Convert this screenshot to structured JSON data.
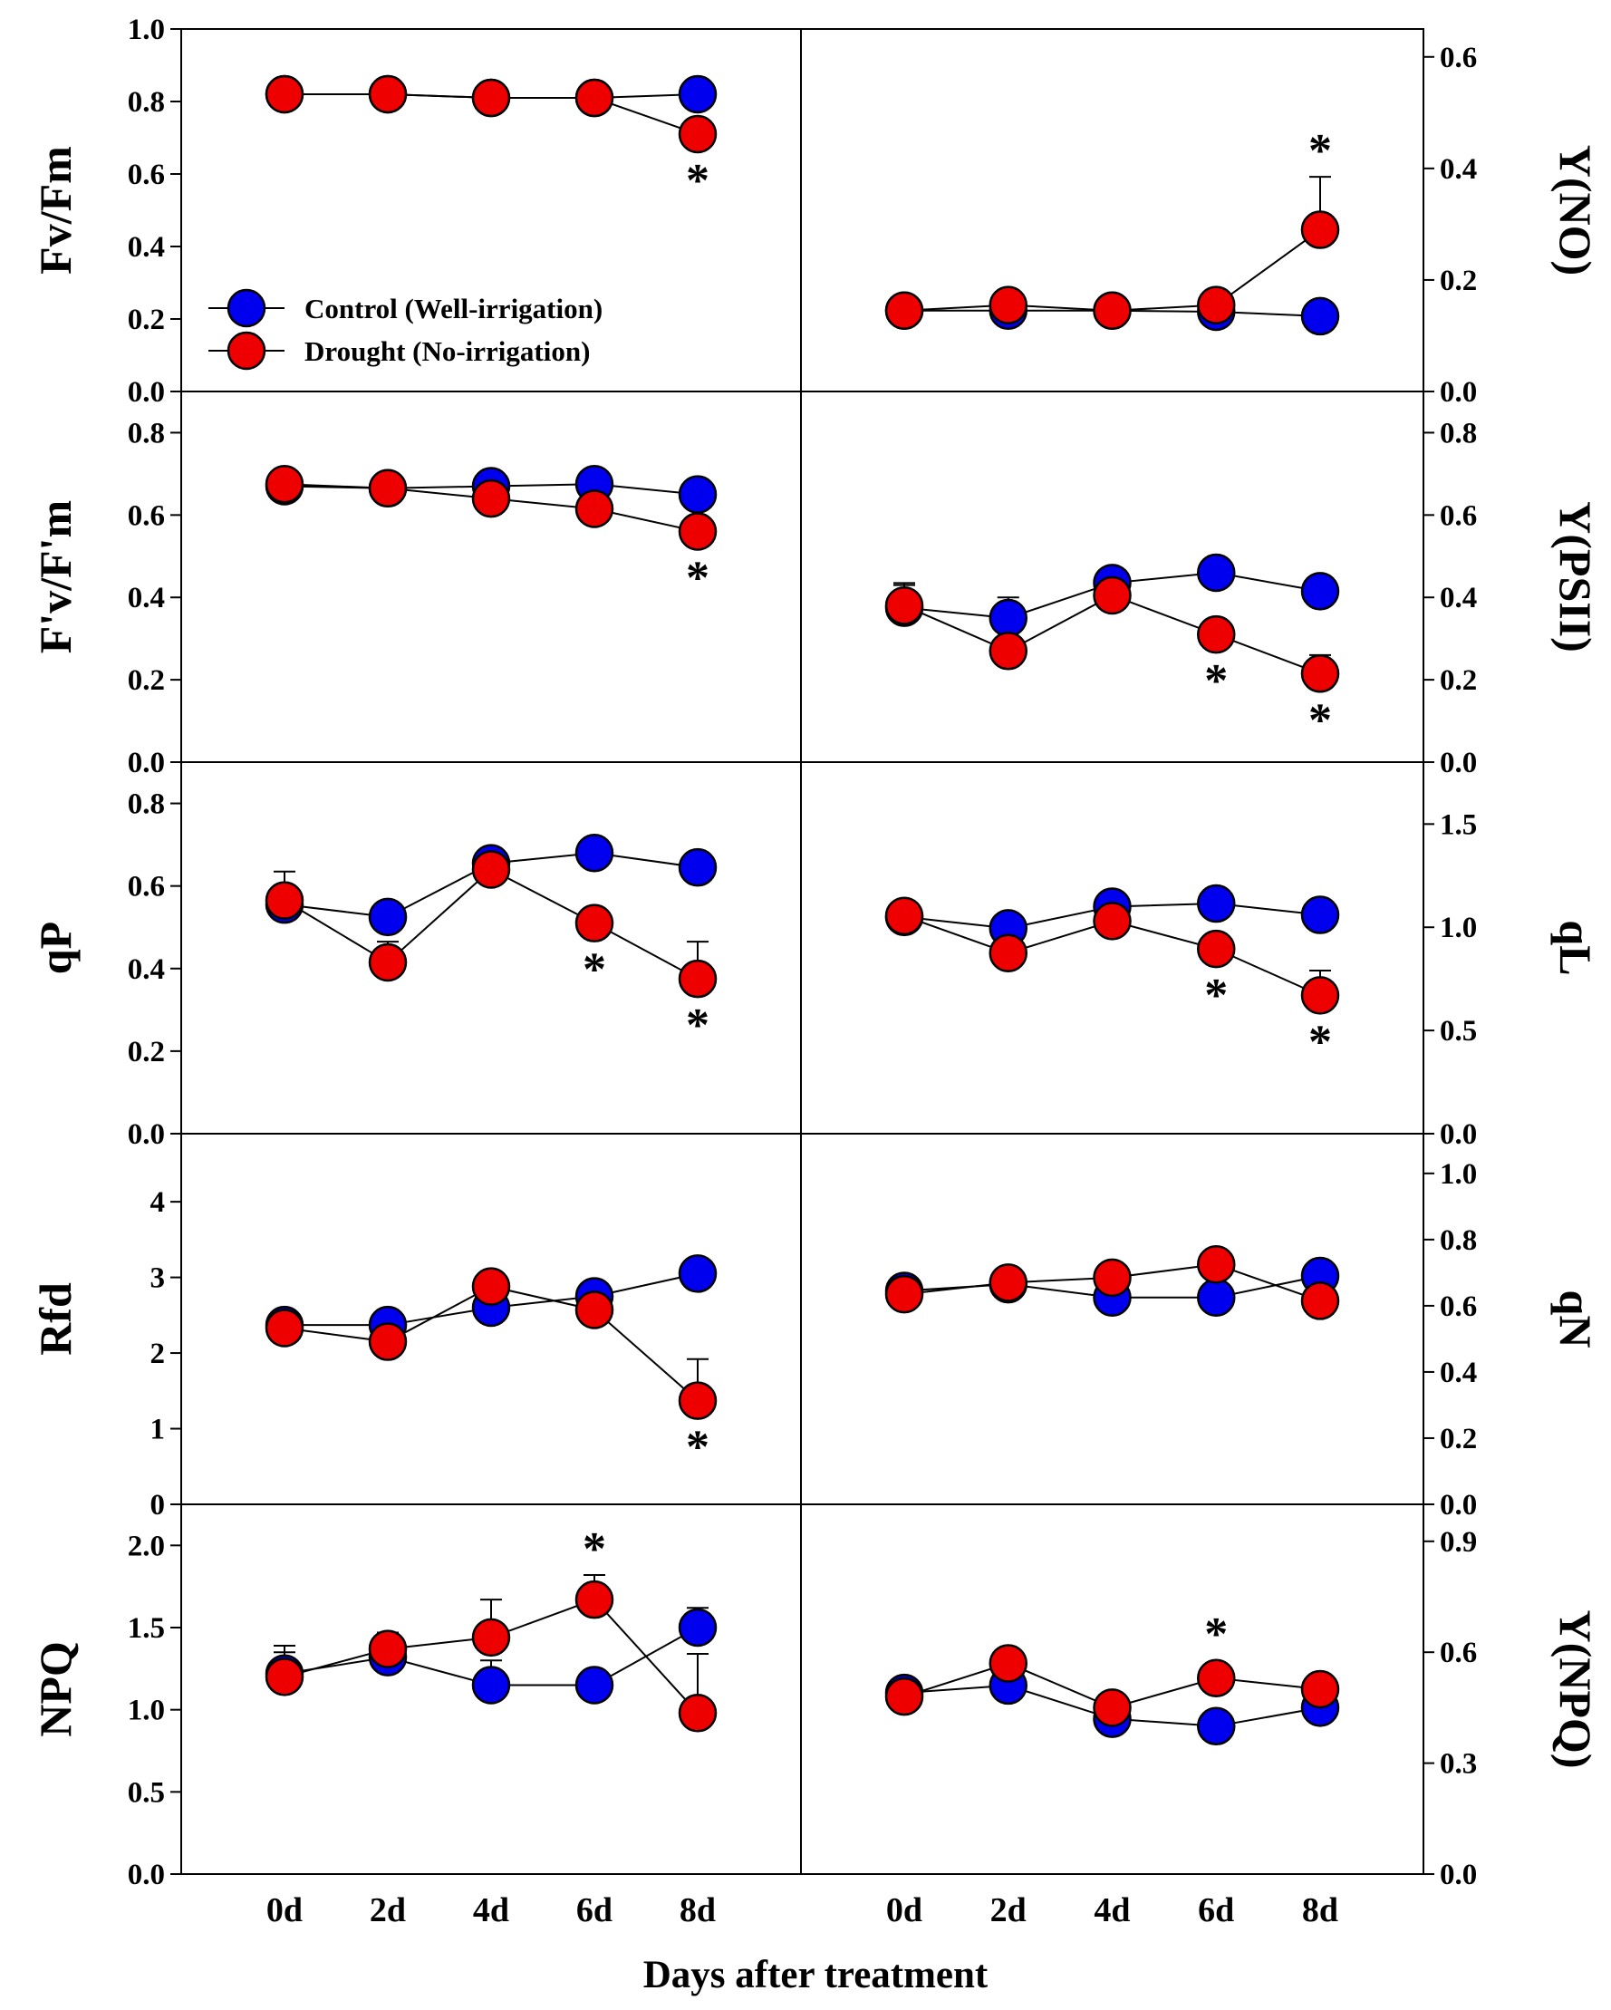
{
  "figure": {
    "xlabel": "Days after treatment",
    "categories": [
      "0d",
      "2d",
      "4d",
      "6d",
      "8d"
    ],
    "legend": {
      "placement": "lower-left of top-left panel",
      "entries": [
        {
          "label": "Control (Well-irrigation)",
          "color": "#0000ee"
        },
        {
          "label": "Drought (No-irrigation)",
          "color": "#ee0000"
        }
      ]
    }
  },
  "chart_data": [
    {
      "type": "line",
      "ylabel": "Fv/Fm",
      "yaxis_side": "left",
      "ylim": [
        0,
        1.0
      ],
      "yticks": [
        "0.0",
        "0.2",
        "0.4",
        "0.6",
        "0.8",
        "1.0"
      ],
      "categories": [
        "0d",
        "2d",
        "4d",
        "6d",
        "8d"
      ],
      "series": [
        {
          "name": "Control (Well-irrigation)",
          "color": "#0000ee",
          "values": [
            0.82,
            0.82,
            0.81,
            0.81,
            0.82
          ],
          "err": [
            0,
            0,
            0,
            0,
            0
          ]
        },
        {
          "name": "Drought (No-irrigation)",
          "color": "#ee0000",
          "values": [
            0.82,
            0.82,
            0.81,
            0.81,
            0.71
          ],
          "err": [
            0,
            0,
            0,
            0,
            0.03
          ]
        }
      ],
      "significant": [
        {
          "index": 4,
          "position": "below"
        }
      ]
    },
    {
      "type": "line",
      "ylabel": "Y(NO)",
      "yaxis_side": "right",
      "ylim": [
        0,
        0.65
      ],
      "yticks": [
        "0.0",
        "0.2",
        "0.4",
        "0.6"
      ],
      "categories": [
        "0d",
        "2d",
        "4d",
        "6d",
        "8d"
      ],
      "series": [
        {
          "name": "Control (Well-irrigation)",
          "color": "#0000ee",
          "values": [
            0.145,
            0.145,
            0.145,
            0.143,
            0.135
          ],
          "err": [
            0,
            0,
            0,
            0,
            0
          ]
        },
        {
          "name": "Drought (No-irrigation)",
          "color": "#ee0000",
          "values": [
            0.145,
            0.155,
            0.145,
            0.155,
            0.29
          ],
          "err": [
            0,
            0,
            0,
            0,
            0.095
          ]
        }
      ],
      "significant": [
        {
          "index": 4,
          "position": "above"
        }
      ]
    },
    {
      "type": "line",
      "ylabel": "F'v/F'm",
      "yaxis_side": "left",
      "ylim": [
        0,
        0.9
      ],
      "yticks": [
        "0.0",
        "0.2",
        "0.4",
        "0.6",
        "0.8"
      ],
      "categories": [
        "0d",
        "2d",
        "4d",
        "6d",
        "8d"
      ],
      "series": [
        {
          "name": "Control (Well-irrigation)",
          "color": "#0000ee",
          "values": [
            0.67,
            0.665,
            0.67,
            0.675,
            0.65
          ],
          "err": [
            0,
            0,
            0,
            0,
            0
          ]
        },
        {
          "name": "Drought (No-irrigation)",
          "color": "#ee0000",
          "values": [
            0.675,
            0.665,
            0.64,
            0.615,
            0.56
          ],
          "err": [
            0,
            0,
            0,
            0,
            0.015
          ]
        }
      ],
      "significant": [
        {
          "index": 4,
          "position": "below"
        }
      ]
    },
    {
      "type": "line",
      "ylabel": "Y(PSII)",
      "yaxis_side": "right",
      "ylim": [
        0,
        0.9
      ],
      "yticks": [
        "0.0",
        "0.2",
        "0.4",
        "0.6",
        "0.8"
      ],
      "categories": [
        "0d",
        "2d",
        "4d",
        "6d",
        "8d"
      ],
      "series": [
        {
          "name": "Control (Well-irrigation)",
          "color": "#0000ee",
          "values": [
            0.375,
            0.35,
            0.435,
            0.46,
            0.415
          ],
          "err": [
            0.06,
            0.05,
            0,
            0,
            0
          ]
        },
        {
          "name": "Drought (No-irrigation)",
          "color": "#ee0000",
          "values": [
            0.38,
            0.27,
            0.405,
            0.31,
            0.215
          ],
          "err": [
            0.05,
            0,
            0,
            0,
            0.045
          ]
        }
      ],
      "significant": [
        {
          "index": 3,
          "position": "below"
        },
        {
          "index": 4,
          "position": "below"
        }
      ]
    },
    {
      "type": "line",
      "ylabel": "qP",
      "yaxis_side": "left",
      "ylim": [
        0,
        0.9
      ],
      "yticks": [
        "0.0",
        "0.2",
        "0.4",
        "0.6",
        "0.8"
      ],
      "categories": [
        "0d",
        "2d",
        "4d",
        "6d",
        "8d"
      ],
      "series": [
        {
          "name": "Control (Well-irrigation)",
          "color": "#0000ee",
          "values": [
            0.555,
            0.525,
            0.655,
            0.68,
            0.645
          ],
          "err": [
            0,
            0,
            0,
            0,
            0
          ]
        },
        {
          "name": "Drought (No-irrigation)",
          "color": "#ee0000",
          "values": [
            0.565,
            0.415,
            0.64,
            0.51,
            0.375
          ],
          "err": [
            0.07,
            0.05,
            0,
            0,
            0.09
          ]
        }
      ],
      "significant": [
        {
          "index": 3,
          "position": "below"
        },
        {
          "index": 4,
          "position": "below"
        }
      ]
    },
    {
      "type": "line",
      "ylabel": "qL",
      "yaxis_side": "right",
      "ylim": [
        0,
        1.8
      ],
      "yticks": [
        "0.0",
        "0.5",
        "1.0",
        "1.5"
      ],
      "categories": [
        "0d",
        "2d",
        "4d",
        "6d",
        "8d"
      ],
      "series": [
        {
          "name": "Control (Well-irrigation)",
          "color": "#0000ee",
          "values": [
            1.05,
            0.995,
            1.1,
            1.115,
            1.06
          ],
          "err": [
            0.05,
            0,
            0,
            0,
            0
          ]
        },
        {
          "name": "Drought (No-irrigation)",
          "color": "#ee0000",
          "values": [
            1.055,
            0.875,
            1.03,
            0.895,
            0.67
          ],
          "err": [
            0,
            0,
            0,
            0,
            0.12
          ]
        }
      ],
      "significant": [
        {
          "index": 3,
          "position": "below"
        },
        {
          "index": 4,
          "position": "below"
        }
      ]
    },
    {
      "type": "line",
      "ylabel": "Rfd",
      "yaxis_side": "left",
      "ylim": [
        0,
        4.9
      ],
      "yticks": [
        "0",
        "1",
        "2",
        "3",
        "4"
      ],
      "categories": [
        "0d",
        "2d",
        "4d",
        "6d",
        "8d"
      ],
      "series": [
        {
          "name": "Control (Well-irrigation)",
          "color": "#0000ee",
          "values": [
            2.37,
            2.37,
            2.6,
            2.75,
            3.05
          ],
          "err": [
            0,
            0,
            0,
            0,
            0
          ]
        },
        {
          "name": "Drought (No-irrigation)",
          "color": "#ee0000",
          "values": [
            2.33,
            2.15,
            2.88,
            2.57,
            1.37
          ],
          "err": [
            0,
            0,
            0,
            0,
            0.55
          ]
        }
      ],
      "significant": [
        {
          "index": 4,
          "position": "below"
        }
      ]
    },
    {
      "type": "line",
      "ylabel": "qN",
      "yaxis_side": "right",
      "ylim": [
        0,
        1.12
      ],
      "yticks": [
        "0.0",
        "0.2",
        "0.4",
        "0.6",
        "0.8",
        "1.0"
      ],
      "categories": [
        "0d",
        "2d",
        "4d",
        "6d",
        "8d"
      ],
      "series": [
        {
          "name": "Control (Well-irrigation)",
          "color": "#0000ee",
          "values": [
            0.645,
            0.665,
            0.625,
            0.625,
            0.69
          ],
          "err": [
            0,
            0,
            0,
            0,
            0
          ]
        },
        {
          "name": "Drought (No-irrigation)",
          "color": "#ee0000",
          "values": [
            0.635,
            0.67,
            0.685,
            0.725,
            0.615
          ],
          "err": [
            0,
            0,
            0,
            0,
            0
          ]
        }
      ],
      "significant": []
    },
    {
      "type": "line",
      "ylabel": "NPQ",
      "yaxis_side": "left",
      "ylim": [
        0,
        2.25
      ],
      "yticks": [
        "0.0",
        "0.5",
        "1.0",
        "1.5",
        "2.0"
      ],
      "categories": [
        "0d",
        "2d",
        "4d",
        "6d",
        "8d"
      ],
      "series": [
        {
          "name": "Control (Well-irrigation)",
          "color": "#0000ee",
          "values": [
            1.22,
            1.32,
            1.15,
            1.15,
            1.5
          ],
          "err": [
            0.17,
            0,
            0.15,
            0,
            0.12
          ]
        },
        {
          "name": "Drought (No-irrigation)",
          "color": "#ee0000",
          "values": [
            1.2,
            1.37,
            1.44,
            1.67,
            0.98
          ],
          "err": [
            0.15,
            0.1,
            0.23,
            0.15,
            0.36
          ]
        }
      ],
      "significant": [
        {
          "index": 3,
          "position": "above"
        }
      ]
    },
    {
      "type": "line",
      "ylabel": "Y(NPQ)",
      "yaxis_side": "right",
      "ylim": [
        0,
        1.0
      ],
      "yticks": [
        "0.0",
        "0.3",
        "0.6",
        "0.9"
      ],
      "categories": [
        "0d",
        "2d",
        "4d",
        "6d",
        "8d"
      ],
      "series": [
        {
          "name": "Control (Well-irrigation)",
          "color": "#0000ee",
          "values": [
            0.49,
            0.51,
            0.42,
            0.4,
            0.45
          ],
          "err": [
            0.03,
            0,
            0,
            0,
            0
          ]
        },
        {
          "name": "Drought (No-irrigation)",
          "color": "#ee0000",
          "values": [
            0.48,
            0.57,
            0.45,
            0.53,
            0.5
          ],
          "err": [
            0,
            0,
            0,
            0,
            0
          ]
        }
      ],
      "significant": [
        {
          "index": 3,
          "position": "above"
        }
      ]
    }
  ]
}
